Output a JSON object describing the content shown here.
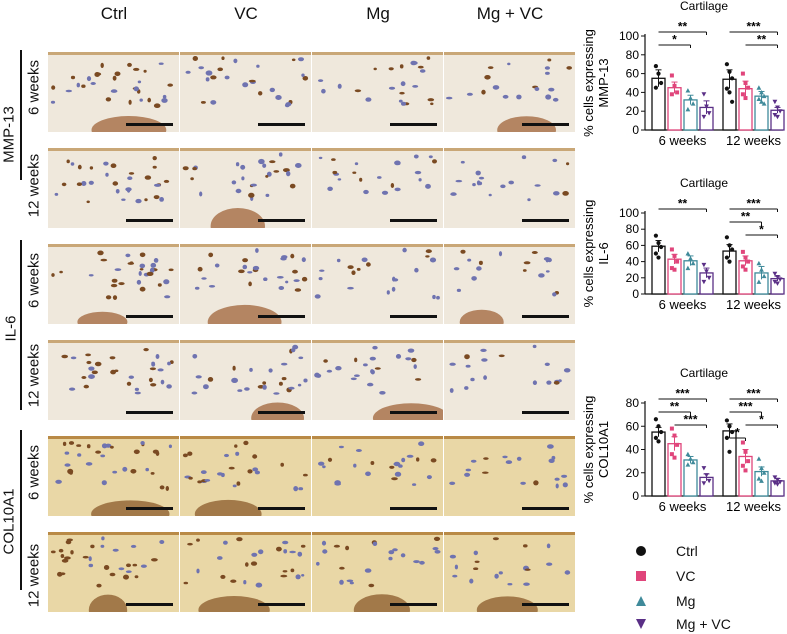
{
  "columns": [
    "Ctrl",
    "VC",
    "Mg",
    "Mg + VC"
  ],
  "row_labels": [
    "6 weeks",
    "12 weeks",
    "6 weeks",
    "12 weeks",
    "6 weeks",
    "12 weeks"
  ],
  "groups": [
    "MMP-13",
    "IL-6",
    "COL10A1"
  ],
  "legend": [
    {
      "label": "Ctrl",
      "color": "#111111",
      "marker": "circle"
    },
    {
      "label": "VC",
      "color": "#e0457b",
      "marker": "square"
    },
    {
      "label": "Mg",
      "color": "#3f8a9a",
      "marker": "triangle-up"
    },
    {
      "label": "Mg + VC",
      "color": "#5a2f86",
      "marker": "triangle-down"
    }
  ],
  "chart_data": [
    {
      "type": "bar",
      "title": "Cartilage",
      "ylabel": "% cells expressing MMP-13",
      "ylim": [
        0,
        100
      ],
      "yticks": [
        0,
        20,
        40,
        60,
        80,
        100
      ],
      "categories": [
        "6 weeks",
        "12 weeks"
      ],
      "series": [
        {
          "name": "Ctrl",
          "values": [
            55,
            54
          ],
          "errors": [
            9,
            10
          ],
          "points": [
            [
              68,
              60,
              50,
              45
            ],
            [
              70,
              62,
              55,
              44,
              40,
              30
            ]
          ]
        },
        {
          "name": "VC",
          "values": [
            45,
            44
          ],
          "errors": [
            6,
            8
          ],
          "points": [
            [
              58,
              47,
              40,
              38
            ],
            [
              60,
              50,
              45,
              38,
              34
            ]
          ]
        },
        {
          "name": "Mg",
          "values": [
            32,
            36
          ],
          "errors": [
            5,
            5
          ],
          "points": [
            [
              42,
              34,
              28,
              22
            ],
            [
              45,
              40,
              36,
              33,
              30,
              28
            ]
          ]
        },
        {
          "name": "Mg + VC",
          "values": [
            24,
            21
          ],
          "errors": [
            7,
            3
          ],
          "points": [
            [
              38,
              25,
              18,
              14
            ],
            [
              30,
              24,
              20,
              16,
              14
            ]
          ]
        }
      ],
      "significance": [
        {
          "text": "**",
          "category": "6 weeks",
          "from": "Ctrl",
          "to": "Mg + VC"
        },
        {
          "text": "*",
          "category": "6 weeks",
          "from": "Ctrl",
          "to": "Mg"
        },
        {
          "text": "***",
          "category": "12 weeks",
          "from": "Ctrl",
          "to": "Mg + VC"
        },
        {
          "text": "**",
          "category": "12 weeks",
          "from": "VC",
          "to": "Mg + VC"
        }
      ]
    },
    {
      "type": "bar",
      "title": "Cartilage",
      "ylabel": "% cells expressing IL-6",
      "ylim": [
        0,
        100
      ],
      "yticks": [
        0,
        20,
        40,
        60,
        80,
        100
      ],
      "categories": [
        "6 weeks",
        "12 weeks"
      ],
      "series": [
        {
          "name": "Ctrl",
          "values": [
            59,
            53
          ],
          "errors": [
            7,
            8
          ],
          "points": [
            [
              72,
              63,
              58,
              50,
              45
            ],
            [
              70,
              60,
              55,
              45,
              40
            ]
          ]
        },
        {
          "name": "VC",
          "values": [
            43,
            41
          ],
          "errors": [
            6,
            6
          ],
          "points": [
            [
              55,
              47,
              40,
              32,
              30
            ],
            [
              52,
              45,
              40,
              34,
              30
            ]
          ]
        },
        {
          "name": "Mg",
          "values": [
            41,
            26
          ],
          "errors": [
            6,
            8
          ],
          "points": [
            [
              50,
              44,
              38,
              32
            ],
            [
              38,
              30,
              22,
              15
            ]
          ]
        },
        {
          "name": "Mg + VC",
          "values": [
            26,
            19
          ],
          "errors": [
            6,
            3
          ],
          "points": [
            [
              36,
              28,
              20,
              15
            ],
            [
              25,
              21,
              18,
              15,
              13
            ]
          ]
        }
      ],
      "significance": [
        {
          "text": "**",
          "category": "6 weeks",
          "from": "Ctrl",
          "to": "Mg + VC"
        },
        {
          "text": "***",
          "category": "12 weeks",
          "from": "Ctrl",
          "to": "Mg + VC"
        },
        {
          "text": "**",
          "category": "12 weeks",
          "from": "Ctrl",
          "to": "Mg"
        },
        {
          "text": "*",
          "category": "12 weeks",
          "from": "VC",
          "to": "Mg + VC"
        }
      ]
    },
    {
      "type": "bar",
      "title": "Cartilage",
      "ylabel": "% cells expressing COL10A1",
      "ylim": [
        0,
        80
      ],
      "yticks": [
        0,
        20,
        40,
        60,
        80
      ],
      "categories": [
        "6 weeks",
        "12 weeks"
      ],
      "series": [
        {
          "name": "Ctrl",
          "values": [
            55,
            56
          ],
          "errors": [
            4,
            6
          ],
          "points": [
            [
              66,
              60,
              55,
              50,
              47
            ],
            [
              65,
              60,
              55,
              50,
              38
            ]
          ]
        },
        {
          "name": "VC",
          "values": [
            45,
            34
          ],
          "errors": [
            6,
            6
          ],
          "points": [
            [
              58,
              52,
              44,
              36,
              33
            ],
            [
              46,
              38,
              30,
              26,
              22
            ]
          ]
        },
        {
          "name": "Mg",
          "values": [
            31,
            21
          ],
          "errors": [
            3,
            4
          ],
          "points": [
            [
              36,
              32,
              29,
              27
            ],
            [
              32,
              24,
              20,
              15,
              13
            ]
          ]
        },
        {
          "name": "Mg + VC",
          "values": [
            16,
            13
          ],
          "errors": [
            3,
            2
          ],
          "points": [
            [
              24,
              18,
              13,
              11
            ],
            [
              16,
              14,
              12,
              11,
              10
            ]
          ]
        }
      ],
      "significance": [
        {
          "text": "***",
          "category": "6 weeks",
          "from": "Ctrl",
          "to": "Mg + VC"
        },
        {
          "text": "**",
          "category": "6 weeks",
          "from": "Ctrl",
          "to": "Mg"
        },
        {
          "text": "***",
          "category": "6 weeks",
          "from": "VC",
          "to": "Mg + VC"
        },
        {
          "text": "***",
          "category": "12 weeks",
          "from": "Ctrl",
          "to": "Mg + VC"
        },
        {
          "text": "***",
          "category": "12 weeks",
          "from": "Ctrl",
          "to": "Mg"
        },
        {
          "text": "*",
          "category": "12 weeks",
          "from": "Ctrl",
          "to": "VC"
        },
        {
          "text": "*",
          "category": "12 weeks",
          "from": "VC",
          "to": "Mg + VC"
        }
      ]
    }
  ]
}
